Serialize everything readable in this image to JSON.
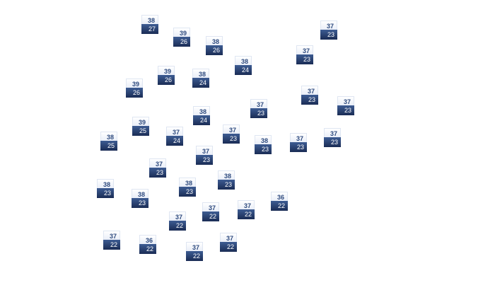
{
  "colors": {
    "high_text": "#2e4a7e",
    "low_bg_top": "#3d5c93",
    "low_bg_bottom": "#1a2c55"
  },
  "markers": [
    {
      "high": "38",
      "low": "27"
    },
    {
      "high": "39",
      "low": "26"
    },
    {
      "high": "38",
      "low": "26"
    },
    {
      "high": "38",
      "low": "24"
    },
    {
      "high": "39",
      "low": "26"
    },
    {
      "high": "38",
      "low": "24"
    },
    {
      "high": "39",
      "low": "26"
    },
    {
      "high": "37",
      "low": "23"
    },
    {
      "high": "37",
      "low": "23"
    },
    {
      "high": "37",
      "low": "23"
    },
    {
      "high": "37",
      "low": "23"
    },
    {
      "high": "37",
      "low": "23"
    },
    {
      "high": "38",
      "low": "24"
    },
    {
      "high": "39",
      "low": "25"
    },
    {
      "high": "37",
      "low": "24"
    },
    {
      "high": "37",
      "low": "23"
    },
    {
      "high": "38",
      "low": "25"
    },
    {
      "high": "38",
      "low": "23"
    },
    {
      "high": "37",
      "low": "23"
    },
    {
      "high": "37",
      "low": "23"
    },
    {
      "high": "37",
      "low": "23"
    },
    {
      "high": "37",
      "low": "23"
    },
    {
      "high": "38",
      "low": "23"
    },
    {
      "high": "38",
      "low": "23"
    },
    {
      "high": "38",
      "low": "23"
    },
    {
      "high": "38",
      "low": "23"
    },
    {
      "high": "36",
      "low": "22"
    },
    {
      "high": "37",
      "low": "22"
    },
    {
      "high": "37",
      "low": "22"
    },
    {
      "high": "37",
      "low": "22"
    },
    {
      "high": "37",
      "low": "22"
    },
    {
      "high": "36",
      "low": "22"
    },
    {
      "high": "37",
      "low": "22"
    },
    {
      "high": "37",
      "low": "22"
    }
  ]
}
